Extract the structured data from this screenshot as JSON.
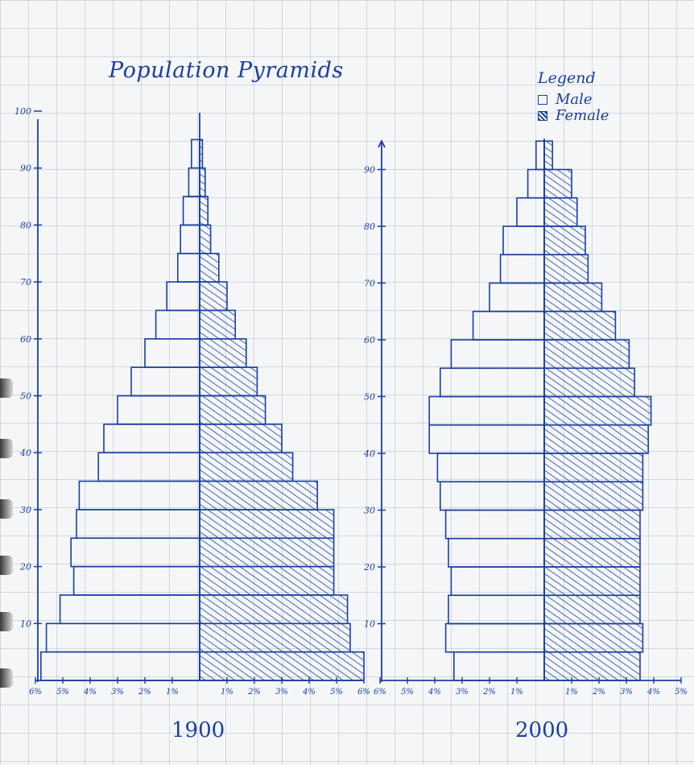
{
  "title": "Population Pyramids",
  "legend": {
    "title": "Legend",
    "male_label": "Male",
    "female_label": "Female"
  },
  "colors": {
    "ink": "#1a3fa0"
  },
  "chart_data": [
    {
      "type": "bar",
      "orientation": "horizontal-pyramid",
      "year_label": "1900",
      "y_ticks": [
        10,
        20,
        30,
        40,
        50,
        60,
        70,
        80,
        90
      ],
      "y_top_label": "100",
      "x_ticks_left": [
        "6%",
        "5%",
        "4%",
        "3%",
        "2%",
        "1%"
      ],
      "x_ticks_right": [
        "1%",
        "2%",
        "3%",
        "4%",
        "5%",
        "6%"
      ],
      "age_groups": [
        "0-4",
        "5-9",
        "10-14",
        "15-19",
        "20-24",
        "25-29",
        "30-34",
        "35-39",
        "40-44",
        "45-49",
        "50-54",
        "55-59",
        "60-64",
        "65-69",
        "70-74",
        "75-79",
        "80-84",
        "85-89",
        "90-94"
      ],
      "series": [
        {
          "name": "Male",
          "values": [
            5.8,
            5.6,
            5.1,
            4.6,
            4.7,
            4.5,
            4.4,
            3.7,
            3.5,
            3.0,
            2.5,
            2.0,
            1.6,
            1.2,
            0.8,
            0.7,
            0.6,
            0.4,
            0.3
          ]
        },
        {
          "name": "Female",
          "values": [
            6.0,
            5.5,
            5.4,
            4.9,
            4.9,
            4.9,
            4.3,
            3.4,
            3.0,
            2.4,
            2.1,
            1.7,
            1.3,
            1.0,
            0.7,
            0.4,
            0.3,
            0.2,
            0.1
          ]
        }
      ],
      "ylim": [
        0,
        100
      ],
      "xlim": [
        -6,
        6
      ]
    },
    {
      "type": "bar",
      "orientation": "horizontal-pyramid",
      "year_label": "2000",
      "y_ticks": [
        10,
        20,
        30,
        40,
        50,
        60,
        70,
        80,
        90
      ],
      "x_ticks_left": [
        "6%",
        "5%",
        "4%",
        "3%",
        "2%",
        "1%"
      ],
      "x_ticks_right": [
        "1%",
        "2%",
        "3%",
        "4%",
        "5%"
      ],
      "age_groups": [
        "0-4",
        "5-9",
        "10-14",
        "15-19",
        "20-24",
        "25-29",
        "30-34",
        "35-39",
        "40-44",
        "45-49",
        "50-54",
        "55-59",
        "60-64",
        "65-69",
        "70-74",
        "75-79",
        "80-84",
        "85-89",
        "90-94"
      ],
      "series": [
        {
          "name": "Male",
          "values": [
            3.3,
            3.6,
            3.5,
            3.4,
            3.5,
            3.6,
            3.8,
            3.9,
            4.2,
            4.2,
            3.8,
            3.4,
            2.6,
            2.0,
            1.6,
            1.5,
            1.0,
            0.6,
            0.3
          ]
        },
        {
          "name": "Female",
          "values": [
            3.5,
            3.6,
            3.5,
            3.5,
            3.5,
            3.5,
            3.6,
            3.6,
            3.8,
            3.9,
            3.3,
            3.1,
            2.6,
            2.1,
            1.6,
            1.5,
            1.2,
            1.0,
            0.3
          ]
        }
      ],
      "ylim": [
        0,
        95
      ],
      "xlim": [
        -6,
        5
      ]
    }
  ]
}
